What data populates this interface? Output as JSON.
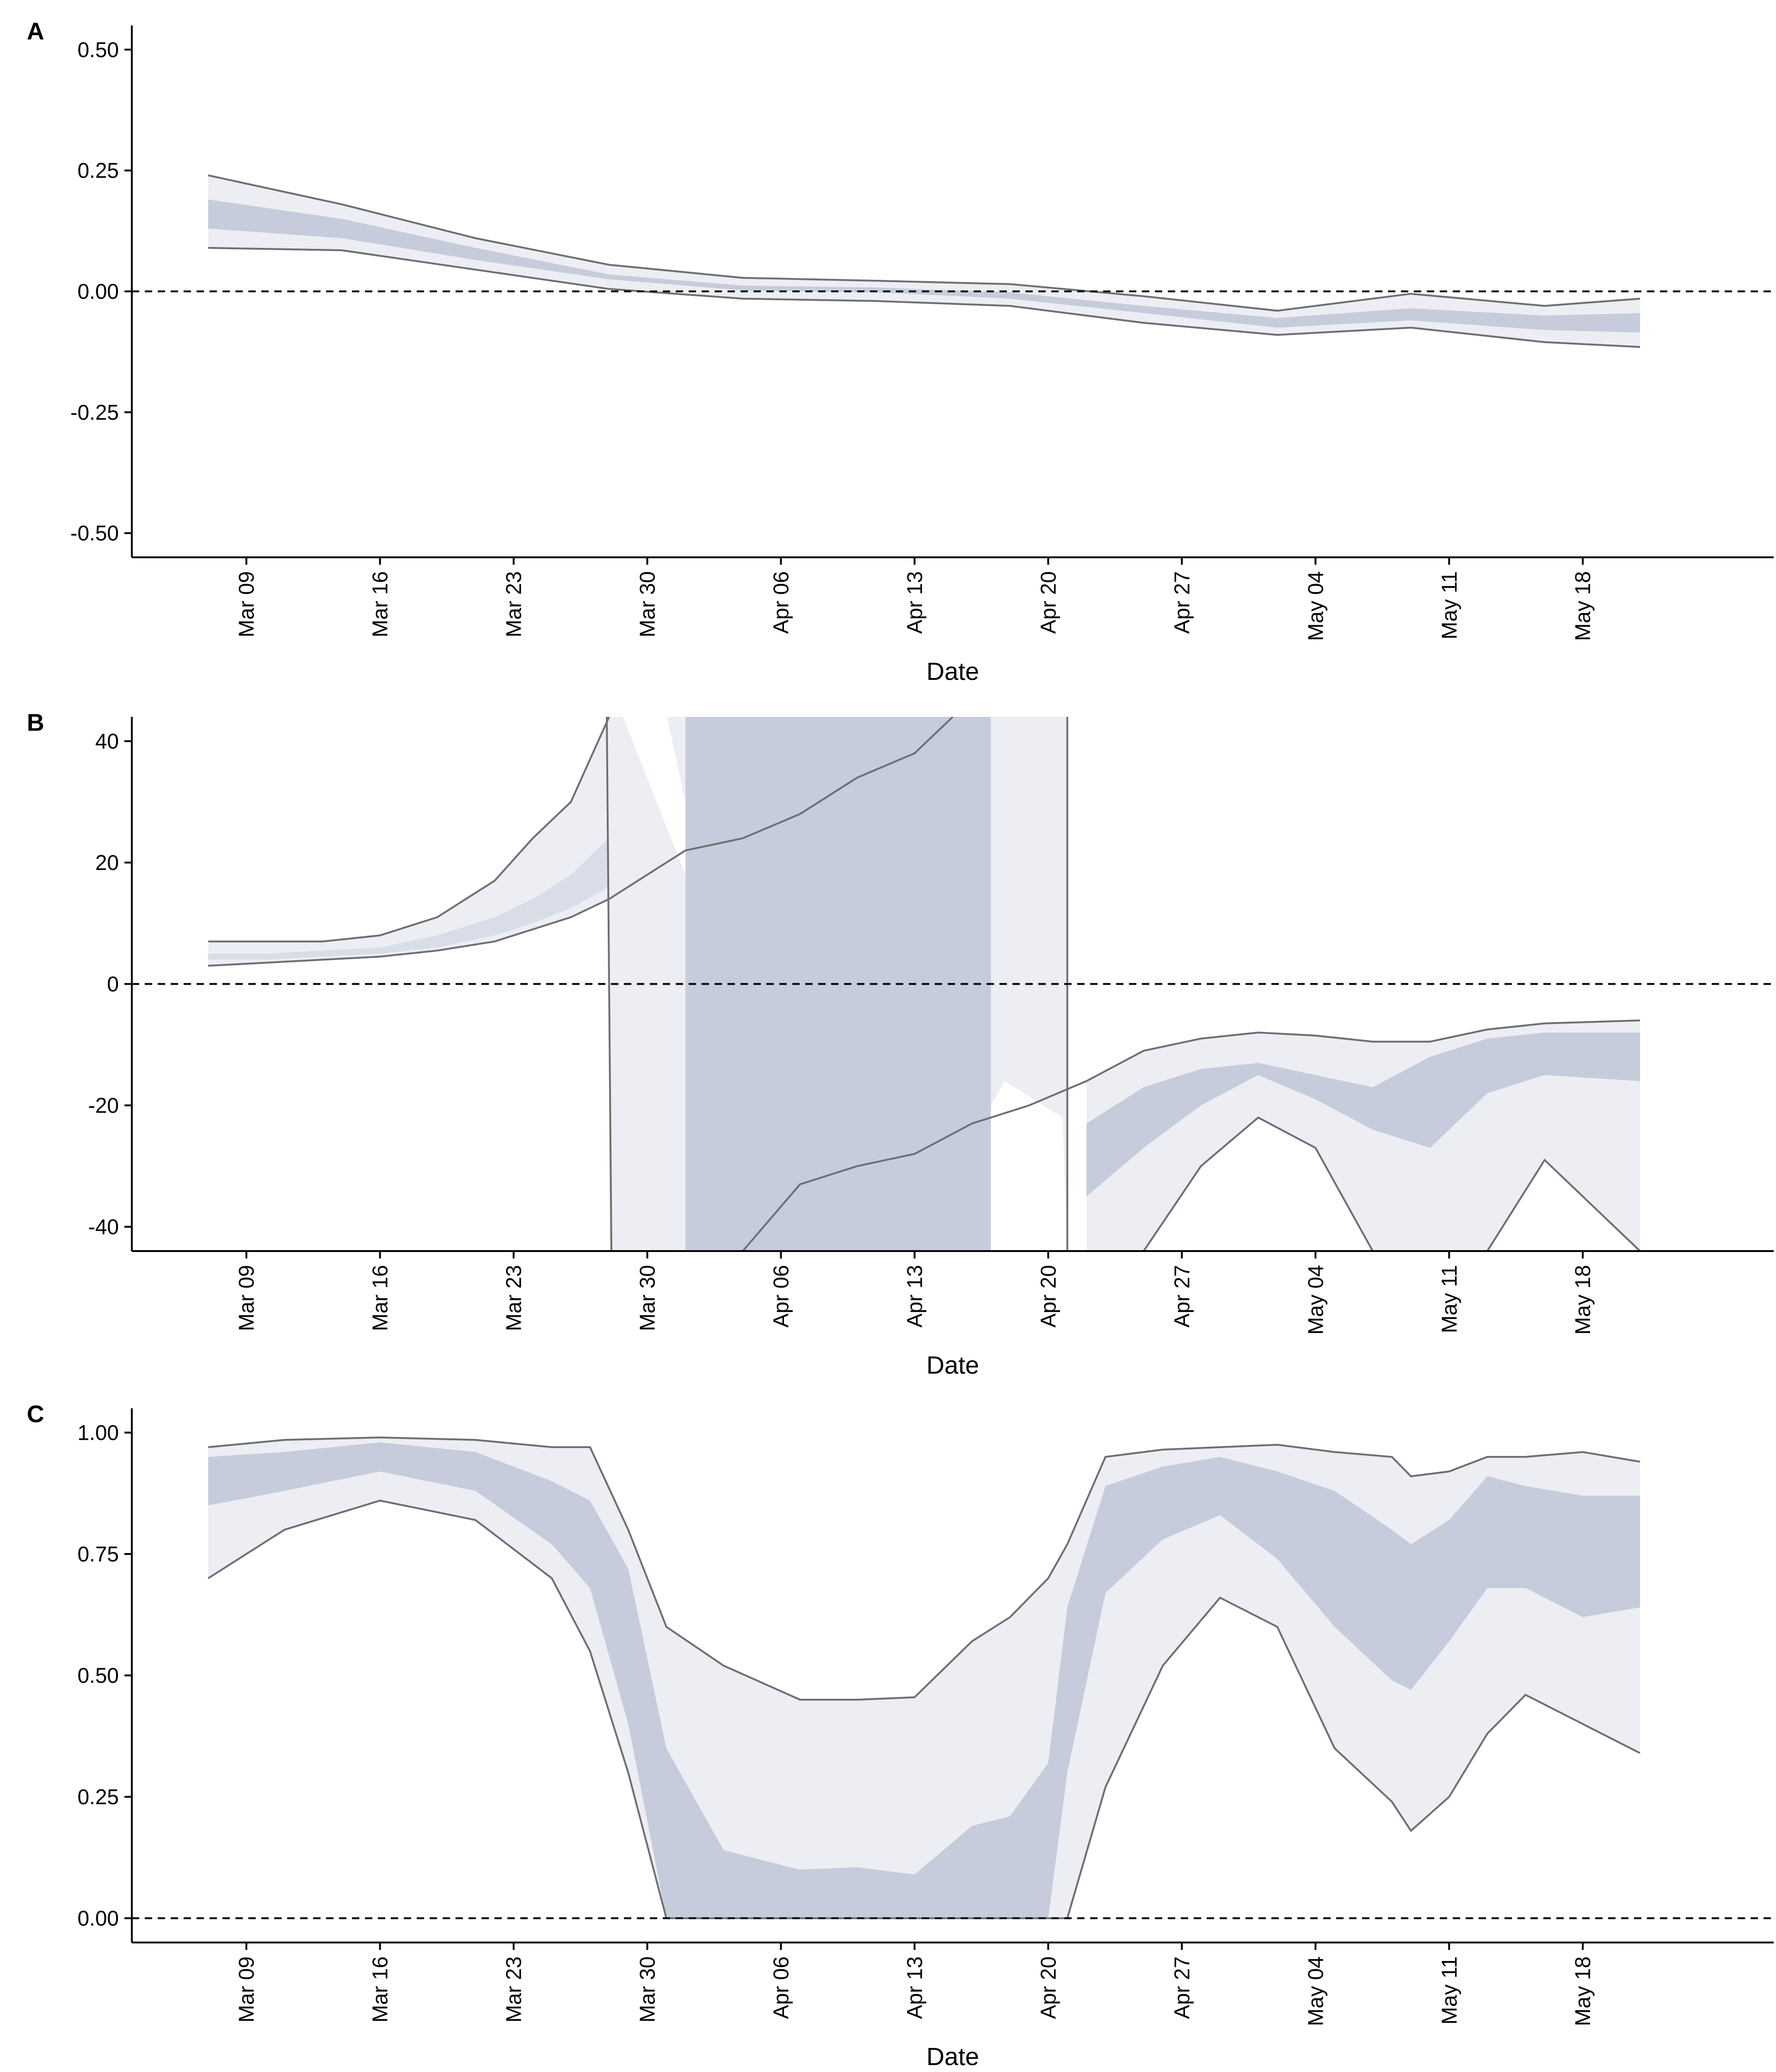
{
  "colors": {
    "outer_band": "#eceef3",
    "mid_band": "#d9dde7",
    "inner_band": "#c6ccdb",
    "border_line": "#6e6e73",
    "axis": "#000000",
    "zero_line": "#000000"
  },
  "chart_data": [
    {
      "panel": "A",
      "type": "area",
      "xlabel": "Date",
      "ylabel": "",
      "ylim": [
        -0.55,
        0.55
      ],
      "xlim": [
        "2020-03-03",
        "2020-05-28"
      ],
      "x_ticks": [
        "Mar 09",
        "Mar 16",
        "Mar 23",
        "Mar 30",
        "Apr 06",
        "Apr 13",
        "Apr 20",
        "Apr 27",
        "May 04",
        "May 11",
        "May 18"
      ],
      "y_ticks": [
        {
          "value": 0.5,
          "label": "0.50"
        },
        {
          "value": 0.25,
          "label": "0.25"
        },
        {
          "value": 0,
          "label": "0.00"
        },
        {
          "value": -0.25,
          "label": "-0.25"
        },
        {
          "value": -0.5,
          "label": "-0.50"
        }
      ],
      "reference_line": 0,
      "x": [
        "2020-03-07",
        "2020-03-14",
        "2020-03-21",
        "2020-03-28",
        "2020-04-04",
        "2020-04-11",
        "2020-04-18",
        "2020-04-25",
        "2020-05-02",
        "2020-05-09",
        "2020-05-16",
        "2020-05-21"
      ],
      "bands": [
        {
          "level": "outer",
          "lower": [
            0.09,
            0.085,
            0.045,
            0.005,
            -0.015,
            -0.02,
            -0.03,
            -0.065,
            -0.09,
            -0.075,
            -0.105,
            -0.115
          ],
          "upper": [
            0.24,
            0.18,
            0.11,
            0.055,
            0.028,
            0.022,
            0.015,
            -0.01,
            -0.04,
            -0.005,
            -0.03,
            -0.015
          ]
        },
        {
          "level": "inner",
          "lower": [
            0.13,
            0.11,
            0.065,
            0.025,
            0.002,
            -0.002,
            -0.015,
            -0.045,
            -0.075,
            -0.06,
            -0.08,
            -0.085
          ],
          "upper": [
            0.19,
            0.15,
            0.09,
            0.035,
            0.012,
            0.008,
            -0.002,
            -0.03,
            -0.055,
            -0.035,
            -0.05,
            -0.045
          ]
        }
      ]
    },
    {
      "panel": "B",
      "type": "area",
      "xlabel": "Date",
      "ylabel": "",
      "ylim": [
        -44,
        44
      ],
      "xlim": [
        "2020-03-03",
        "2020-05-28"
      ],
      "x_ticks": [
        "Mar 09",
        "Mar 16",
        "Mar 23",
        "Mar 30",
        "Apr 06",
        "Apr 13",
        "Apr 20",
        "Apr 27",
        "May 04",
        "May 11",
        "May 18"
      ],
      "y_ticks": [
        {
          "value": 40,
          "label": "40"
        },
        {
          "value": 20,
          "label": "20"
        },
        {
          "value": 0,
          "label": "0"
        },
        {
          "value": -20,
          "label": "-20"
        },
        {
          "value": -40,
          "label": "-40"
        }
      ],
      "reference_line": 0,
      "x_early": [
        "2020-03-07",
        "2020-03-10",
        "2020-03-13",
        "2020-03-16",
        "2020-03-19",
        "2020-03-22",
        "2020-03-24",
        "2020-03-26",
        "2020-03-28"
      ],
      "early_outer_upper": [
        7,
        7,
        7,
        8,
        11,
        17,
        24,
        30,
        44
      ],
      "early_outer_lower": [
        3,
        3.5,
        4,
        4.5,
        5.5,
        7,
        9,
        11,
        14
      ],
      "early_inner_upper": [
        5,
        5,
        5.5,
        6,
        8,
        11,
        14,
        18,
        24
      ],
      "early_inner_lower": [
        4,
        4,
        4.5,
        5,
        6,
        8,
        10,
        12.5,
        16
      ],
      "x_late": [
        "2020-04-22",
        "2020-04-25",
        "2020-04-28",
        "2020-05-01",
        "2020-05-04",
        "2020-05-07",
        "2020-05-10",
        "2020-05-13",
        "2020-05-16",
        "2020-05-21"
      ],
      "late_outer_upper": [
        -16,
        -11,
        -9,
        -8,
        -8.5,
        -9.5,
        -9.5,
        -7.5,
        -6.5,
        -6
      ],
      "late_outer_lower": [
        -44,
        -44,
        -30,
        -22,
        -27,
        -44,
        -44,
        -44,
        -29,
        -44
      ],
      "late_inner_upper": [
        -23,
        -17,
        -14,
        -13,
        -15,
        -17,
        -12,
        -9,
        -8,
        -8
      ],
      "late_inner_lower": [
        -35,
        -27,
        -20,
        -15,
        -19,
        -24,
        -27,
        -18,
        -15,
        -16
      ]
    },
    {
      "panel": "C",
      "type": "area",
      "xlabel": "Date",
      "ylabel": "",
      "ylim": [
        -0.05,
        1.05
      ],
      "xlim": [
        "2020-03-03",
        "2020-05-28"
      ],
      "x_ticks": [
        "Mar 09",
        "Mar 16",
        "Mar 23",
        "Mar 30",
        "Apr 06",
        "Apr 13",
        "Apr 20",
        "Apr 27",
        "May 04",
        "May 11",
        "May 18"
      ],
      "y_ticks": [
        {
          "value": 1,
          "label": "1.00"
        },
        {
          "value": 0.75,
          "label": "0.75"
        },
        {
          "value": 0.5,
          "label": "0.50"
        },
        {
          "value": 0.25,
          "label": "0.25"
        },
        {
          "value": 0,
          "label": "0.00"
        }
      ],
      "reference_line": 0,
      "x": [
        "2020-03-07",
        "2020-03-11",
        "2020-03-16",
        "2020-03-21",
        "2020-03-25",
        "2020-03-27",
        "2020-03-29",
        "2020-03-31",
        "2020-04-03",
        "2020-04-07",
        "2020-04-10",
        "2020-04-13",
        "2020-04-16",
        "2020-04-18",
        "2020-04-20",
        "2020-04-21",
        "2020-04-23",
        "2020-04-26",
        "2020-04-29",
        "2020-05-02",
        "2020-05-05",
        "2020-05-08",
        "2020-05-09",
        "2020-05-11",
        "2020-05-13",
        "2020-05-15",
        "2020-05-18",
        "2020-05-21"
      ],
      "outer_upper": [
        0.97,
        0.985,
        0.99,
        0.985,
        0.97,
        0.97,
        0.8,
        0.6,
        0.52,
        0.45,
        0.45,
        0.455,
        0.57,
        0.62,
        0.7,
        0.77,
        0.95,
        0.965,
        0.97,
        0.975,
        0.96,
        0.95,
        0.91,
        0.92,
        0.95,
        0.95,
        0.96,
        0.94
      ],
      "outer_lower": [
        0.7,
        0.8,
        0.86,
        0.82,
        0.7,
        0.55,
        0.3,
        0,
        0,
        0,
        0,
        0,
        0,
        0,
        0,
        0,
        0.27,
        0.52,
        0.66,
        0.6,
        0.35,
        0.24,
        0.18,
        0.25,
        0.38,
        0.46,
        0.4,
        0.34
      ],
      "inner_upper": [
        0.95,
        0.96,
        0.98,
        0.96,
        0.9,
        0.86,
        0.72,
        0.35,
        0.14,
        0.1,
        0.105,
        0.09,
        0.19,
        0.21,
        0.32,
        0.64,
        0.89,
        0.93,
        0.95,
        0.92,
        0.88,
        0.8,
        0.77,
        0.82,
        0.91,
        0.89,
        0.87,
        0.87
      ],
      "inner_lower": [
        0.85,
        0.88,
        0.92,
        0.88,
        0.77,
        0.68,
        0.4,
        0,
        0,
        0,
        0,
        0,
        0,
        0,
        0,
        0.3,
        0.67,
        0.78,
        0.83,
        0.74,
        0.6,
        0.49,
        0.47,
        0.57,
        0.68,
        0.68,
        0.62,
        0.64
      ]
    }
  ]
}
